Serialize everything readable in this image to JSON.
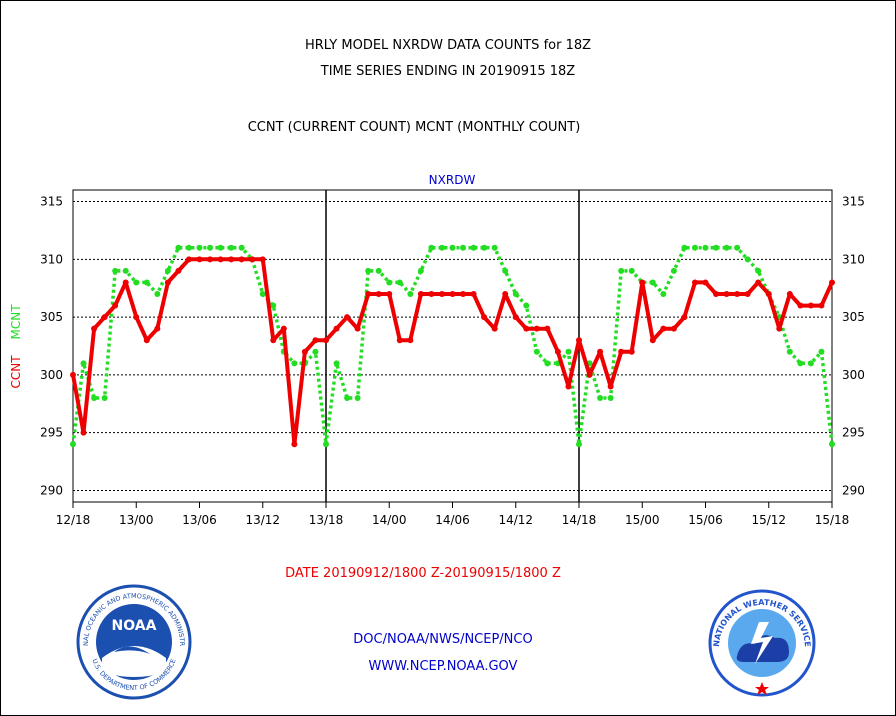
{
  "header": {
    "title_line1": "HRLY MODEL NXRDW DATA COUNTS for 18Z",
    "title_line2": "TIME SERIES ENDING IN 20190915 18Z",
    "subtitle": "CCNT (CURRENT COUNT) MCNT (MONTHLY COUNT)"
  },
  "footer": {
    "date_range": "DATE 20190912/1800 Z-20190915/1800 Z",
    "org_line": "DOC/NOAA/NWS/NCEP/NCO",
    "url_line": "WWW.NCEP.NOAA.GOV"
  },
  "logos": {
    "noaa_text": "NOAA",
    "noaa_ring_text": "NATIONAL OCEANIC AND ATMOSPHERIC ADMINISTRATION",
    "noaa_ring_bottom": "U.S. DEPARTMENT OF COMMERCE",
    "nws_ring_text": "NATIONAL WEATHER SERVICE"
  },
  "colors": {
    "ccnt": "#ee0000",
    "mcnt": "#22dd22",
    "title_blue": "#0000cc",
    "noaa_blue": "#1b4fb0",
    "nws_blue": "#2255cc"
  },
  "chart_data": {
    "type": "line",
    "title": "NXRDW",
    "ylabel_left_ccnt": "CCNT",
    "ylabel_left_mcnt": "MCNT",
    "ylim": [
      289,
      316
    ],
    "yticks": [
      290,
      295,
      300,
      305,
      310,
      315
    ],
    "ytick_labels": [
      "290",
      "295",
      "300",
      "305",
      "310",
      "315"
    ],
    "xticks": [
      0,
      6,
      12,
      18,
      24,
      30,
      36,
      42,
      48,
      54,
      60,
      66,
      72
    ],
    "xtick_labels": [
      "12/18",
      "13/00",
      "13/06",
      "13/12",
      "13/18",
      "14/00",
      "14/06",
      "14/12",
      "14/18",
      "15/00",
      "15/06",
      "15/12",
      "15/18"
    ],
    "xlim": [
      0,
      72
    ],
    "day_dividers": [
      24,
      48
    ],
    "grid": "horizontal dashed",
    "series": [
      {
        "name": "CCNT",
        "style": "solid",
        "values": [
          300,
          295,
          304,
          305,
          306,
          308,
          305,
          303,
          304,
          308,
          309,
          310,
          310,
          310,
          310,
          310,
          310,
          310,
          310,
          303,
          304,
          294,
          302,
          303,
          303,
          304,
          305,
          304,
          307,
          307,
          307,
          303,
          303,
          307,
          307,
          307,
          307,
          307,
          307,
          305,
          304,
          307,
          305,
          304,
          304,
          304,
          302,
          299,
          303,
          300,
          302,
          299,
          302,
          302,
          308,
          303,
          304,
          304,
          305,
          308,
          308,
          307,
          307,
          307,
          307,
          308,
          307,
          304,
          307,
          306,
          306,
          306,
          308
        ]
      },
      {
        "name": "MCNT",
        "style": "dotted",
        "values": [
          294,
          301,
          298,
          298,
          309,
          309,
          308,
          308,
          307,
          309,
          311,
          311,
          311,
          311,
          311,
          311,
          311,
          310,
          307,
          306,
          302,
          301,
          301,
          302,
          294,
          301,
          298,
          298,
          309,
          309,
          308,
          308,
          307,
          309,
          311,
          311,
          311,
          311,
          311,
          311,
          311,
          309,
          307,
          306,
          302,
          301,
          301,
          302,
          294,
          301,
          298,
          298,
          309,
          309,
          308,
          308,
          307,
          309,
          311,
          311,
          311,
          311,
          311,
          311,
          310,
          309,
          307,
          305,
          302,
          301,
          301,
          302,
          294
        ]
      }
    ]
  }
}
